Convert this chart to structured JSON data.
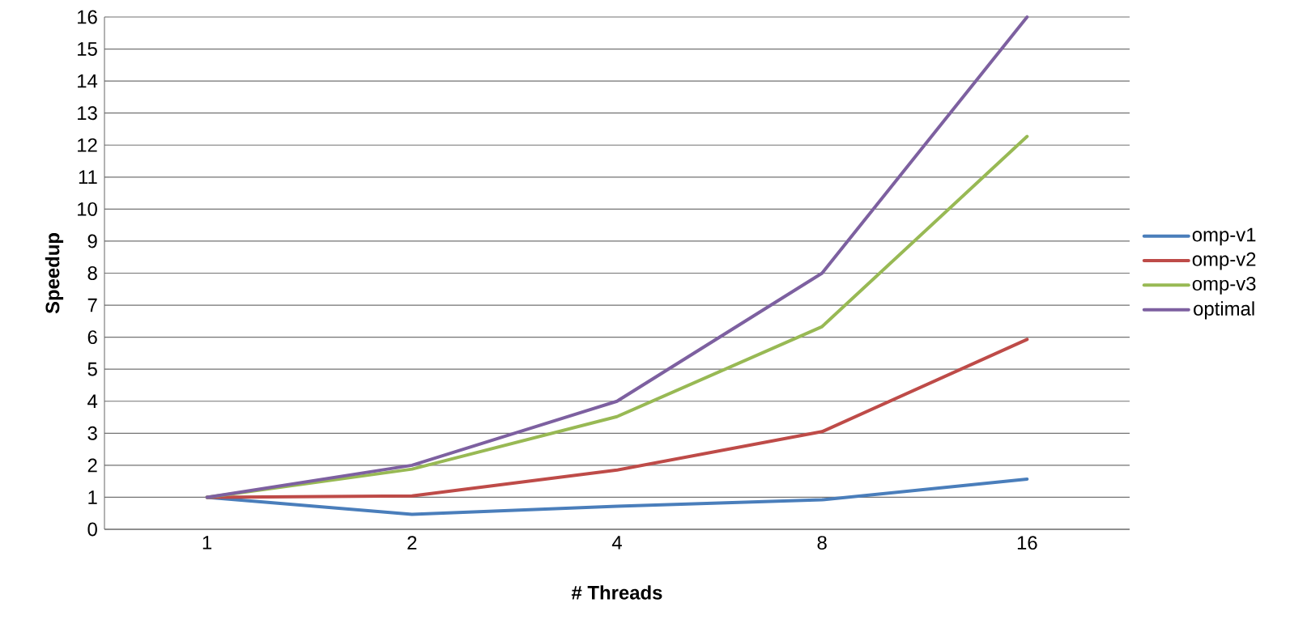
{
  "chart_data": {
    "type": "line",
    "xlabel": "# Threads",
    "ylabel": "Speedup",
    "categories": [
      "1",
      "2",
      "4",
      "8",
      "16"
    ],
    "series": [
      {
        "name": "omp-v1",
        "color": "#4a7ebb",
        "values": [
          1,
          0.47,
          0.72,
          0.92,
          1.57
        ]
      },
      {
        "name": "omp-v2",
        "color": "#be4b48",
        "values": [
          1,
          1.04,
          1.85,
          3.05,
          5.93
        ]
      },
      {
        "name": "omp-v3",
        "color": "#98b954",
        "values": [
          1,
          1.88,
          3.52,
          6.33,
          12.27
        ]
      },
      {
        "name": "optimal",
        "color": "#7d60a0",
        "values": [
          1,
          2,
          4,
          8,
          16
        ]
      }
    ],
    "ylim": [
      0,
      16
    ],
    "yticks": [
      0,
      1,
      2,
      3,
      4,
      5,
      6,
      7,
      8,
      9,
      10,
      11,
      12,
      13,
      14,
      15,
      16
    ],
    "grid": "y",
    "legend": "right",
    "marker": "none",
    "line_style": "solid"
  }
}
